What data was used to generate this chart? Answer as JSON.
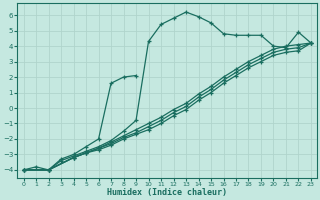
{
  "xlabel": "Humidex (Indice chaleur)",
  "xlim": [
    -0.5,
    23.5
  ],
  "ylim": [
    -4.5,
    6.8
  ],
  "xticks": [
    0,
    1,
    2,
    3,
    4,
    5,
    6,
    7,
    8,
    9,
    10,
    11,
    12,
    13,
    14,
    15,
    16,
    17,
    18,
    19,
    20,
    21,
    22,
    23
  ],
  "yticks": [
    -4,
    -3,
    -2,
    -1,
    0,
    1,
    2,
    3,
    4,
    5,
    6
  ],
  "bg_color": "#c5e8e0",
  "grid_color": "#b0d4cc",
  "line_color": "#1a6e60",
  "lines": [
    {
      "x": [
        0,
        1,
        2,
        3,
        4,
        5,
        6,
        7,
        8,
        9,
        10,
        11,
        12,
        13,
        14,
        15,
        16,
        17,
        18,
        19,
        20,
        21,
        22,
        23
      ],
      "y": [
        -4,
        -3.8,
        -4.0,
        -3.4,
        -3.1,
        -2.8,
        -2.5,
        -2.1,
        -1.5,
        -0.8,
        4.3,
        5.4,
        5.8,
        6.2,
        5.9,
        5.5,
        4.8,
        4.7,
        4.7,
        4.7,
        4.0,
        3.9,
        4.9,
        4.2
      ]
    },
    {
      "x": [
        0,
        2,
        3,
        4,
        5,
        6,
        7,
        8,
        9
      ],
      "y": [
        -4,
        -4.0,
        -3.3,
        -3.0,
        -2.5,
        -2.0,
        1.6,
        2.0,
        2.1
      ]
    },
    {
      "x": [
        0,
        2,
        4,
        5,
        6,
        7,
        8,
        9,
        10,
        11,
        12,
        13,
        14,
        15,
        16,
        17,
        18,
        19,
        20,
        21,
        22,
        23
      ],
      "y": [
        -4,
        -4.0,
        -3.2,
        -2.9,
        -2.6,
        -2.2,
        -1.8,
        -1.4,
        -1.0,
        -0.6,
        -0.1,
        0.3,
        0.9,
        1.4,
        2.0,
        2.5,
        3.0,
        3.4,
        3.8,
        4.0,
        4.1,
        4.2
      ]
    },
    {
      "x": [
        0,
        2,
        4,
        5,
        6,
        7,
        8,
        9,
        10,
        11,
        12,
        13,
        14,
        15,
        16,
        17,
        18,
        19,
        20,
        21,
        22,
        23
      ],
      "y": [
        -4,
        -4.0,
        -3.2,
        -2.9,
        -2.6,
        -2.3,
        -1.9,
        -1.6,
        -1.2,
        -0.8,
        -0.3,
        0.1,
        0.7,
        1.2,
        1.8,
        2.3,
        2.8,
        3.2,
        3.6,
        3.8,
        3.9,
        4.2
      ]
    },
    {
      "x": [
        0,
        2,
        4,
        5,
        6,
        7,
        8,
        9,
        10,
        11,
        12,
        13,
        14,
        15,
        16,
        17,
        18,
        19,
        20,
        21,
        22,
        23
      ],
      "y": [
        -4,
        -4.0,
        -3.2,
        -2.9,
        -2.7,
        -2.4,
        -2.0,
        -1.7,
        -1.4,
        -1.0,
        -0.5,
        -0.1,
        0.5,
        1.0,
        1.6,
        2.1,
        2.6,
        3.0,
        3.4,
        3.6,
        3.7,
        4.2
      ]
    }
  ]
}
